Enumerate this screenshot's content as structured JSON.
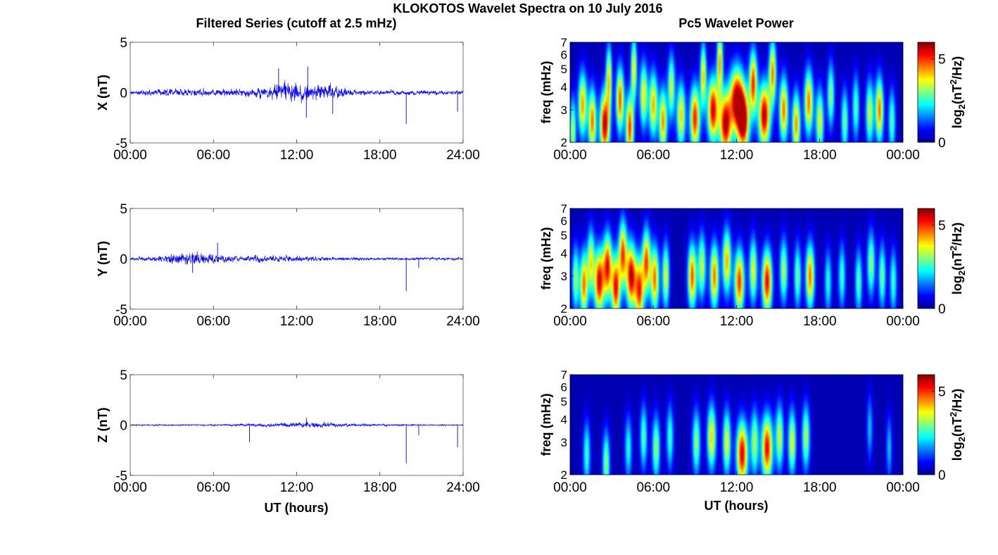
{
  "figure": {
    "title": "KLOKOTOS Wavelet Spectra on 10 July 2016",
    "left_title": "Filtered Series (cutoff at 2.5 mHz)",
    "right_title": "Pc5 Wavelet Power",
    "xlabel": "UT (hours)"
  },
  "colors": {
    "series": "#0000ff",
    "axis": "#000000",
    "background": "#000080"
  },
  "chart_data": [
    {
      "type": "line",
      "ylabel": "X (nT)",
      "xlim": [
        0,
        24
      ],
      "ylim": [
        -5,
        5
      ],
      "yticks": [
        "5",
        "0",
        "-5"
      ],
      "xticks": [
        "00:00",
        "06:00",
        "12:00",
        "18:00",
        "24:00"
      ],
      "envelope": [
        {
          "h": 0,
          "a": 0.3
        },
        {
          "h": 2,
          "a": 0.5
        },
        {
          "h": 3,
          "a": 0.6
        },
        {
          "h": 6,
          "a": 0.5
        },
        {
          "h": 8,
          "a": 0.5
        },
        {
          "h": 10,
          "a": 0.9
        },
        {
          "h": 11,
          "a": 1.4
        },
        {
          "h": 12,
          "a": 1.6
        },
        {
          "h": 13,
          "a": 1.0
        },
        {
          "h": 14.5,
          "a": 1.1
        },
        {
          "h": 16,
          "a": 0.4
        },
        {
          "h": 18,
          "a": 0.35
        },
        {
          "h": 21,
          "a": 0.35
        },
        {
          "h": 24,
          "a": 0.3
        }
      ],
      "spikes": [
        {
          "h": 10.7,
          "v": 2.4
        },
        {
          "h": 12.8,
          "v": 2.6
        },
        {
          "h": 12.7,
          "v": -2.5
        },
        {
          "h": 14.6,
          "v": -2.1
        },
        {
          "h": 19.9,
          "v": -3.1
        },
        {
          "h": 23.6,
          "v": -1.9
        }
      ]
    },
    {
      "type": "line",
      "ylabel": "Y (nT)",
      "xlim": [
        0,
        24
      ],
      "ylim": [
        -5,
        5
      ],
      "yticks": [
        "5",
        "0",
        "-5"
      ],
      "xticks": [
        "00:00",
        "06:00",
        "12:00",
        "18:00",
        "24:00"
      ],
      "envelope": [
        {
          "h": 0,
          "a": 0.2
        },
        {
          "h": 2,
          "a": 0.4
        },
        {
          "h": 3,
          "a": 0.8
        },
        {
          "h": 5,
          "a": 0.9
        },
        {
          "h": 6.5,
          "a": 0.6
        },
        {
          "h": 8,
          "a": 0.3
        },
        {
          "h": 9,
          "a": 0.5
        },
        {
          "h": 12,
          "a": 0.4
        },
        {
          "h": 14,
          "a": 0.3
        },
        {
          "h": 18,
          "a": 0.2
        },
        {
          "h": 24,
          "a": 0.2
        }
      ],
      "spikes": [
        {
          "h": 4.5,
          "v": -1.4
        },
        {
          "h": 6.3,
          "v": 1.6
        },
        {
          "h": 19.9,
          "v": -3.2
        },
        {
          "h": 20.8,
          "v": -0.9
        }
      ]
    },
    {
      "type": "line",
      "ylabel": "Z (nT)",
      "xlim": [
        0,
        24
      ],
      "ylim": [
        -5,
        5
      ],
      "yticks": [
        "5",
        "0",
        "-5"
      ],
      "xticks": [
        "00:00",
        "06:00",
        "12:00",
        "18:00",
        "24:00"
      ],
      "envelope": [
        {
          "h": 0,
          "a": 0.1
        },
        {
          "h": 6,
          "a": 0.12
        },
        {
          "h": 10,
          "a": 0.25
        },
        {
          "h": 12.7,
          "a": 0.45
        },
        {
          "h": 14.5,
          "a": 0.3
        },
        {
          "h": 16,
          "a": 0.2
        },
        {
          "h": 20,
          "a": 0.12
        },
        {
          "h": 24,
          "a": 0.1
        }
      ],
      "spikes": [
        {
          "h": 8.6,
          "v": -1.7
        },
        {
          "h": 12.7,
          "v": 0.7
        },
        {
          "h": 19.9,
          "v": -3.8
        },
        {
          "h": 20.8,
          "v": -1.0
        },
        {
          "h": 23.6,
          "v": -2.2
        }
      ]
    },
    {
      "type": "heatmap",
      "ylabel": "freq (mHz)",
      "xlim": [
        0,
        24
      ],
      "ylim": [
        2,
        7
      ],
      "yscale": "log",
      "yticks": [
        "7",
        "6",
        "5",
        "4",
        "3",
        "2"
      ],
      "xticks": [
        "00:00",
        "06:00",
        "12:00",
        "18:00",
        "00:00"
      ],
      "colorbar": {
        "label": "log2(nT^2/Hz)",
        "ticks": [
          "5",
          "0"
        ],
        "range": [
          0,
          6
        ],
        "colormap": "jet"
      },
      "blobs": [
        {
          "t": 0.2,
          "f": 2.3,
          "a": 3.5,
          "w": 0.15
        },
        {
          "t": 0.9,
          "f": 3.2,
          "a": 4.5,
          "w": 0.22
        },
        {
          "t": 1.6,
          "f": 2.6,
          "a": 4.8,
          "w": 0.2
        },
        {
          "t": 2.5,
          "f": 2.5,
          "a": 6.0,
          "w": 0.25
        },
        {
          "t": 2.8,
          "f": 4.5,
          "a": 4.0,
          "w": 0.15
        },
        {
          "t": 3.6,
          "f": 3.4,
          "a": 5.0,
          "w": 0.2
        },
        {
          "t": 4.3,
          "f": 2.4,
          "a": 5.2,
          "w": 0.2
        },
        {
          "t": 4.6,
          "f": 5.0,
          "a": 4.0,
          "w": 0.15
        },
        {
          "t": 5.3,
          "f": 3.6,
          "a": 4.0,
          "w": 0.2
        },
        {
          "t": 6.0,
          "f": 3.2,
          "a": 4.4,
          "w": 0.22
        },
        {
          "t": 6.7,
          "f": 2.6,
          "a": 4.6,
          "w": 0.2
        },
        {
          "t": 7.3,
          "f": 4.0,
          "a": 3.6,
          "w": 0.18
        },
        {
          "t": 8.0,
          "f": 2.8,
          "a": 4.2,
          "w": 0.22
        },
        {
          "t": 9.0,
          "f": 2.7,
          "a": 5.4,
          "w": 0.25
        },
        {
          "t": 9.6,
          "f": 4.6,
          "a": 4.2,
          "w": 0.15
        },
        {
          "t": 10.3,
          "f": 3.0,
          "a": 5.8,
          "w": 0.28
        },
        {
          "t": 10.8,
          "f": 5.5,
          "a": 4.4,
          "w": 0.15
        },
        {
          "t": 11.2,
          "f": 2.5,
          "a": 6.0,
          "w": 0.3
        },
        {
          "t": 12.0,
          "f": 3.4,
          "a": 6.0,
          "w": 0.35
        },
        {
          "t": 12.5,
          "f": 2.6,
          "a": 6.0,
          "w": 0.3
        },
        {
          "t": 13.2,
          "f": 4.2,
          "a": 5.2,
          "w": 0.2
        },
        {
          "t": 14.0,
          "f": 2.8,
          "a": 6.0,
          "w": 0.3
        },
        {
          "t": 14.6,
          "f": 4.8,
          "a": 4.6,
          "w": 0.18
        },
        {
          "t": 15.4,
          "f": 3.0,
          "a": 4.8,
          "w": 0.22
        },
        {
          "t": 16.3,
          "f": 2.5,
          "a": 4.6,
          "w": 0.2
        },
        {
          "t": 17.2,
          "f": 3.3,
          "a": 4.8,
          "w": 0.22
        },
        {
          "t": 18.0,
          "f": 2.6,
          "a": 3.8,
          "w": 0.2
        },
        {
          "t": 18.8,
          "f": 3.6,
          "a": 3.2,
          "w": 0.18
        },
        {
          "t": 19.8,
          "f": 2.6,
          "a": 3.0,
          "w": 0.18
        },
        {
          "t": 20.6,
          "f": 3.1,
          "a": 2.8,
          "w": 0.18
        },
        {
          "t": 21.6,
          "f": 2.9,
          "a": 3.6,
          "w": 0.2
        },
        {
          "t": 22.3,
          "f": 3.0,
          "a": 4.8,
          "w": 0.2
        },
        {
          "t": 23.2,
          "f": 2.6,
          "a": 2.8,
          "w": 0.18
        }
      ]
    },
    {
      "type": "heatmap",
      "ylabel": "freq (mHz)",
      "xlim": [
        0,
        24
      ],
      "ylim": [
        2,
        7
      ],
      "yscale": "log",
      "yticks": [
        "7",
        "6",
        "5",
        "4",
        "3",
        "2"
      ],
      "xticks": [
        "00:00",
        "06:00",
        "12:00",
        "18:00",
        "00:00"
      ],
      "colorbar": {
        "label": "log2(nT^2/Hz)",
        "ticks": [
          "5",
          "0"
        ],
        "range": [
          0,
          6
        ],
        "colormap": "jet"
      },
      "blobs": [
        {
          "t": 0.4,
          "f": 2.9,
          "a": 3.2,
          "w": 0.18
        },
        {
          "t": 1.0,
          "f": 2.7,
          "a": 4.8,
          "w": 0.2
        },
        {
          "t": 1.5,
          "f": 3.6,
          "a": 3.8,
          "w": 0.18
        },
        {
          "t": 2.1,
          "f": 2.8,
          "a": 5.8,
          "w": 0.25
        },
        {
          "t": 2.7,
          "f": 3.4,
          "a": 5.4,
          "w": 0.22
        },
        {
          "t": 3.3,
          "f": 2.6,
          "a": 5.6,
          "w": 0.22
        },
        {
          "t": 3.8,
          "f": 4.0,
          "a": 5.0,
          "w": 0.2
        },
        {
          "t": 4.4,
          "f": 3.0,
          "a": 6.0,
          "w": 0.25
        },
        {
          "t": 5.0,
          "f": 2.5,
          "a": 5.2,
          "w": 0.22
        },
        {
          "t": 5.5,
          "f": 3.6,
          "a": 5.0,
          "w": 0.2
        },
        {
          "t": 6.1,
          "f": 2.9,
          "a": 4.8,
          "w": 0.22
        },
        {
          "t": 6.9,
          "f": 3.0,
          "a": 3.8,
          "w": 0.18
        },
        {
          "t": 8.8,
          "f": 3.0,
          "a": 5.0,
          "w": 0.22
        },
        {
          "t": 9.5,
          "f": 3.4,
          "a": 3.6,
          "w": 0.2
        },
        {
          "t": 10.4,
          "f": 3.0,
          "a": 4.8,
          "w": 0.22
        },
        {
          "t": 11.3,
          "f": 3.6,
          "a": 4.4,
          "w": 0.22
        },
        {
          "t": 12.2,
          "f": 2.8,
          "a": 5.2,
          "w": 0.25
        },
        {
          "t": 13.2,
          "f": 3.2,
          "a": 3.8,
          "w": 0.2
        },
        {
          "t": 14.2,
          "f": 2.8,
          "a": 5.6,
          "w": 0.25
        },
        {
          "t": 15.4,
          "f": 3.2,
          "a": 3.4,
          "w": 0.2
        },
        {
          "t": 16.4,
          "f": 3.0,
          "a": 3.0,
          "w": 0.18
        },
        {
          "t": 17.3,
          "f": 3.0,
          "a": 4.8,
          "w": 0.22
        },
        {
          "t": 18.6,
          "f": 2.8,
          "a": 2.4,
          "w": 0.18
        },
        {
          "t": 19.6,
          "f": 3.0,
          "a": 2.6,
          "w": 0.18
        },
        {
          "t": 20.8,
          "f": 2.8,
          "a": 2.8,
          "w": 0.18
        },
        {
          "t": 21.7,
          "f": 3.5,
          "a": 3.2,
          "w": 0.2
        },
        {
          "t": 22.5,
          "f": 3.0,
          "a": 3.0,
          "w": 0.18
        },
        {
          "t": 23.3,
          "f": 2.8,
          "a": 2.6,
          "w": 0.18
        }
      ]
    },
    {
      "type": "heatmap",
      "ylabel": "freq (mHz)",
      "xlim": [
        0,
        24
      ],
      "ylim": [
        2,
        7
      ],
      "yscale": "log",
      "yticks": [
        "7",
        "6",
        "5",
        "4",
        "3",
        "2"
      ],
      "xticks": [
        "00:00",
        "06:00",
        "12:00",
        "18:00",
        "00:00"
      ],
      "colorbar": {
        "label": "log2(nT^2/Hz)",
        "ticks": [
          "5",
          "0"
        ],
        "range": [
          0,
          6
        ],
        "colormap": "jet"
      },
      "blobs": [
        {
          "t": 1.2,
          "f": 2.6,
          "a": 2.6,
          "w": 0.18
        },
        {
          "t": 2.6,
          "f": 2.3,
          "a": 3.2,
          "w": 0.18
        },
        {
          "t": 4.2,
          "f": 2.8,
          "a": 2.4,
          "w": 0.18
        },
        {
          "t": 5.3,
          "f": 3.2,
          "a": 2.8,
          "w": 0.18
        },
        {
          "t": 6.2,
          "f": 2.8,
          "a": 3.2,
          "w": 0.2
        },
        {
          "t": 7.2,
          "f": 3.2,
          "a": 2.6,
          "w": 0.18
        },
        {
          "t": 9.1,
          "f": 3.0,
          "a": 3.2,
          "w": 0.2
        },
        {
          "t": 10.2,
          "f": 3.2,
          "a": 4.2,
          "w": 0.22
        },
        {
          "t": 11.3,
          "f": 3.0,
          "a": 3.8,
          "w": 0.2
        },
        {
          "t": 12.4,
          "f": 2.6,
          "a": 5.8,
          "w": 0.28
        },
        {
          "t": 13.3,
          "f": 3.0,
          "a": 3.4,
          "w": 0.2
        },
        {
          "t": 14.2,
          "f": 2.8,
          "a": 5.6,
          "w": 0.28
        },
        {
          "t": 15.1,
          "f": 3.2,
          "a": 3.6,
          "w": 0.2
        },
        {
          "t": 16.0,
          "f": 3.0,
          "a": 3.8,
          "w": 0.2
        },
        {
          "t": 17.0,
          "f": 3.2,
          "a": 3.4,
          "w": 0.2
        },
        {
          "t": 21.6,
          "f": 3.6,
          "a": 1.8,
          "w": 0.15
        },
        {
          "t": 23.0,
          "f": 2.8,
          "a": 1.8,
          "w": 0.15
        }
      ]
    }
  ]
}
